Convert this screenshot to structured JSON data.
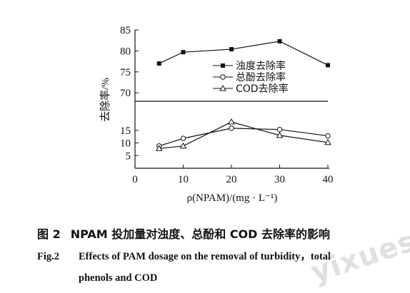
{
  "chart_data": {
    "type": "line",
    "ylabel": "去除率/%",
    "xlabel": "ρ(NPAM)/(mg · L⁻¹)",
    "x": [
      5,
      10,
      20,
      30,
      40
    ],
    "x_ticks": [
      "0",
      "10",
      "20",
      "30",
      "40"
    ],
    "y_ticks_lower": [
      "5",
      "10",
      "15"
    ],
    "y_ticks_upper": [
      "70",
      "75",
      "80",
      "85"
    ],
    "ylim_lower": [
      0,
      20
    ],
    "ylim_upper": [
      68,
      85
    ],
    "axis_break": true,
    "grid": false,
    "legend_position": "top-right",
    "series": [
      {
        "name": "浊度去除率",
        "marker": "filled-square",
        "values": [
          77.0,
          79.7,
          80.4,
          82.3,
          76.6
        ]
      },
      {
        "name": "总酚去除率",
        "marker": "open-circle",
        "values": [
          8.8,
          11.8,
          15.8,
          15.3,
          12.8
        ]
      },
      {
        "name": "COD去除率",
        "marker": "open-triangle",
        "values": [
          7.8,
          8.8,
          18.3,
          13.0,
          10.2
        ]
      }
    ]
  },
  "caption": {
    "cn_label": "图 2",
    "cn_text": "NPAM 投加量对浊度、总酚和 COD 去除率的影响",
    "en_label": "Fig.2",
    "en_text_line1": "Effects of PAM dosage on the removal of turbidity，total",
    "en_text_line2": "phenols and COD"
  },
  "watermark": "yixuesh"
}
